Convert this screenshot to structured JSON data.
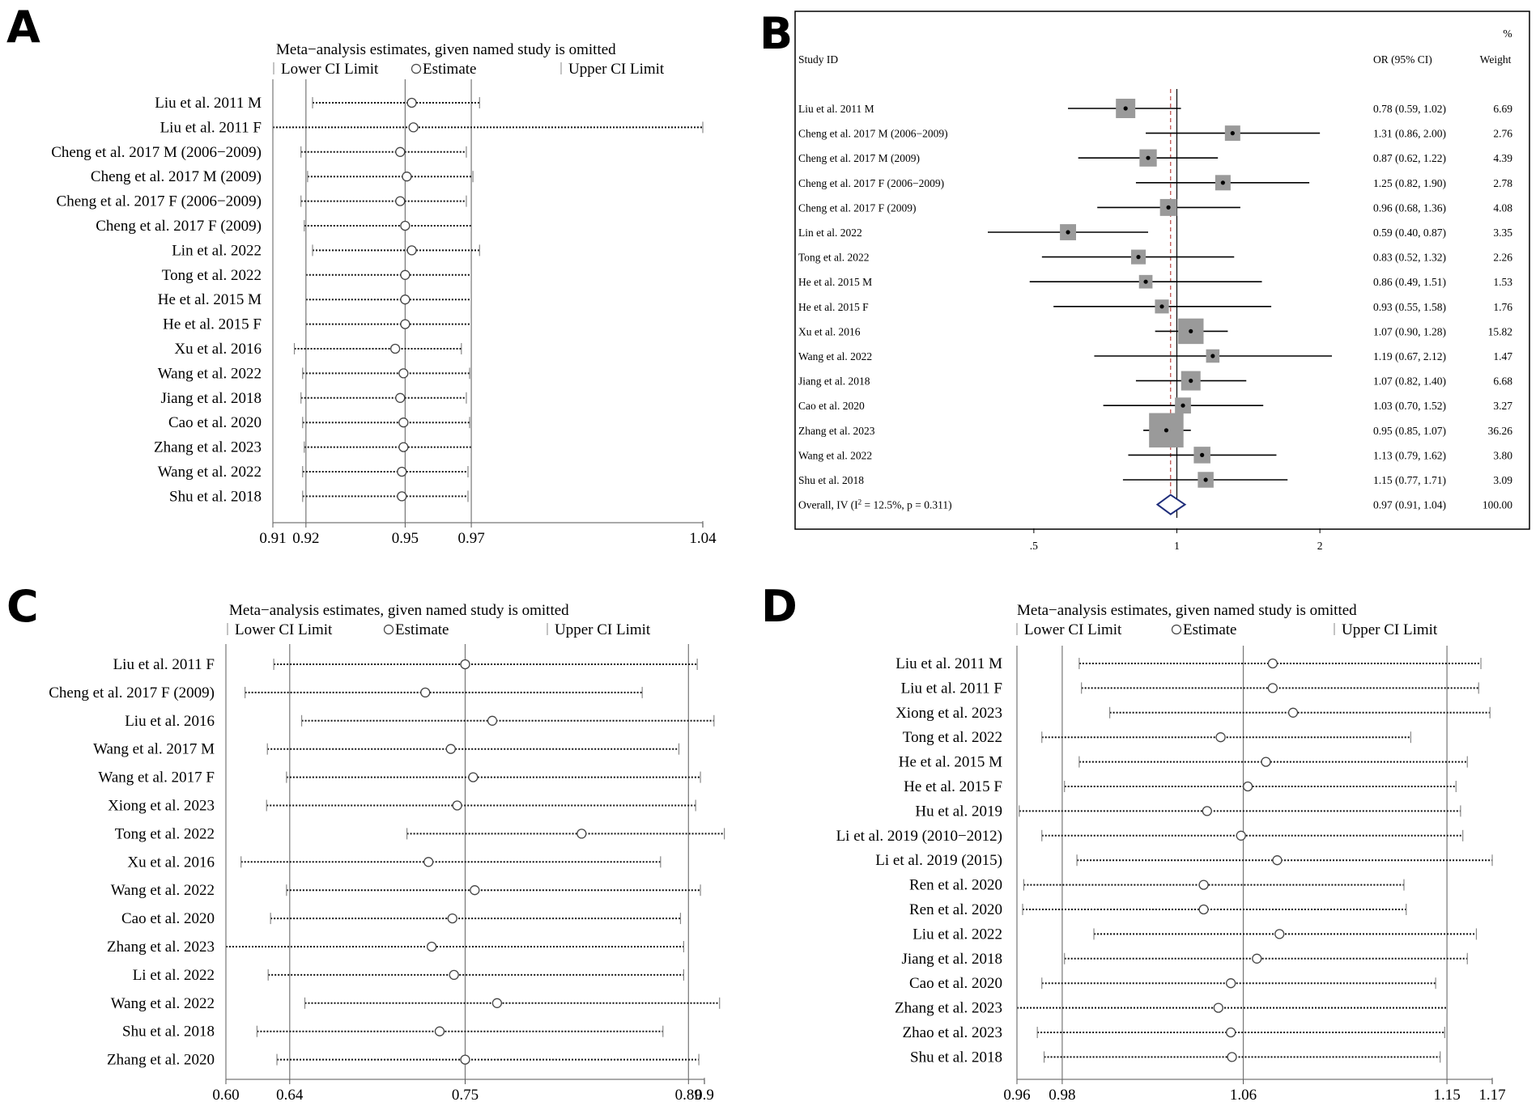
{
  "chart_data": [
    {
      "panel": "A",
      "type": "sensitivity",
      "title": "Meta−analysis estimates, given named study is omitted",
      "legend": [
        "Lower CI Limit",
        "Estimate",
        "Upper CI Limit"
      ],
      "axis": {
        "min": 0.91,
        "max": 1.04,
        "ticks": [
          0.91,
          0.92,
          0.95,
          0.97,
          1.04
        ],
        "tick_labels": [
          "0.91",
          "0.92",
          "0.95",
          "0.97",
          "1.04"
        ],
        "ref_lines": [
          0.92,
          0.95,
          0.97
        ]
      },
      "studies": [
        {
          "label": "Liu et al. 2011 M",
          "lower": 0.922,
          "est": 0.952,
          "upper": 0.9725
        },
        {
          "label": "Liu et al. 2011 F",
          "lower": 0.91,
          "est": 0.9525,
          "upper": 1.04
        },
        {
          "label": "Cheng et al. 2017 M (2006−2009)",
          "lower": 0.9185,
          "est": 0.9485,
          "upper": 0.9685
        },
        {
          "label": "Cheng et al. 2017 M (2009)",
          "lower": 0.9205,
          "est": 0.9505,
          "upper": 0.9705
        },
        {
          "label": "Cheng et al. 2017 F (2006−2009)",
          "lower": 0.9185,
          "est": 0.9485,
          "upper": 0.9685
        },
        {
          "label": "Cheng et al. 2017 F (2009)",
          "lower": 0.9195,
          "est": 0.95,
          "upper": 0.97
        },
        {
          "label": "Lin et al. 2022",
          "lower": 0.922,
          "est": 0.952,
          "upper": 0.9725
        },
        {
          "label": "Tong et al. 2022",
          "lower": 0.92,
          "est": 0.95,
          "upper": 0.97
        },
        {
          "label": "He et al. 2015 M",
          "lower": 0.92,
          "est": 0.95,
          "upper": 0.97
        },
        {
          "label": "He et al. 2015 F",
          "lower": 0.92,
          "est": 0.95,
          "upper": 0.97
        },
        {
          "label": "Xu et al. 2016",
          "lower": 0.9165,
          "est": 0.947,
          "upper": 0.967
        },
        {
          "label": "Wang et al. 2022",
          "lower": 0.919,
          "est": 0.9495,
          "upper": 0.9695
        },
        {
          "label": "Jiang et al. 2018",
          "lower": 0.9185,
          "est": 0.9485,
          "upper": 0.9685
        },
        {
          "label": "Cao et al. 2020",
          "lower": 0.919,
          "est": 0.9495,
          "upper": 0.9695
        },
        {
          "label": "Zhang et al. 2023",
          "lower": 0.9195,
          "est": 0.9495,
          "upper": 0.97
        },
        {
          "label": "Wang et al. 2022",
          "lower": 0.919,
          "est": 0.949,
          "upper": 0.969
        },
        {
          "label": "Shu et al. 2018",
          "lower": 0.919,
          "est": 0.949,
          "upper": 0.969
        }
      ]
    },
    {
      "panel": "B",
      "type": "forest",
      "header": {
        "study": "Study ID",
        "or": "OR (95% CI)",
        "weight_top": "%",
        "weight": "Weight"
      },
      "axis": {
        "scale": "log",
        "min": 0.4,
        "max": 2.12,
        "ticks": [
          0.5,
          1,
          2
        ],
        "tick_labels": [
          ".5",
          "1",
          "2"
        ],
        "ref_line": 1,
        "overall_line": 0.97
      },
      "studies": [
        {
          "label": "Liu et al. 2011 M",
          "or": 0.78,
          "lo": 0.59,
          "hi": 1.02,
          "ci_text": "0.78 (0.59, 1.02)",
          "weight_text": "6.69",
          "weight": 6.69
        },
        {
          "label": "Cheng et al. 2017 M (2006−2009)",
          "or": 1.31,
          "lo": 0.86,
          "hi": 2.0,
          "ci_text": "1.31 (0.86, 2.00)",
          "weight_text": "2.76",
          "weight": 2.76
        },
        {
          "label": "Cheng et al. 2017 M (2009)",
          "or": 0.87,
          "lo": 0.62,
          "hi": 1.22,
          "ci_text": "0.87 (0.62, 1.22)",
          "weight_text": "4.39",
          "weight": 4.39
        },
        {
          "label": "Cheng et al. 2017 F (2006−2009)",
          "or": 1.25,
          "lo": 0.82,
          "hi": 1.9,
          "ci_text": "1.25 (0.82, 1.90)",
          "weight_text": "2.78",
          "weight": 2.78
        },
        {
          "label": "Cheng et al. 2017 F (2009)",
          "or": 0.96,
          "lo": 0.68,
          "hi": 1.36,
          "ci_text": "0.96 (0.68, 1.36)",
          "weight_text": "4.08",
          "weight": 4.08
        },
        {
          "label": "Lin et al. 2022",
          "or": 0.59,
          "lo": 0.4,
          "hi": 0.87,
          "ci_text": "0.59 (0.40, 0.87)",
          "weight_text": "3.35",
          "weight": 3.35
        },
        {
          "label": "Tong et al. 2022",
          "or": 0.83,
          "lo": 0.52,
          "hi": 1.32,
          "ci_text": "0.83 (0.52, 1.32)",
          "weight_text": "2.26",
          "weight": 2.26
        },
        {
          "label": "He et al. 2015 M",
          "or": 0.86,
          "lo": 0.49,
          "hi": 1.51,
          "ci_text": "0.86 (0.49, 1.51)",
          "weight_text": "1.53",
          "weight": 1.53
        },
        {
          "label": "He et al. 2015 F",
          "or": 0.93,
          "lo": 0.55,
          "hi": 1.58,
          "ci_text": "0.93 (0.55, 1.58)",
          "weight_text": "1.76",
          "weight": 1.76
        },
        {
          "label": "Xu et al. 2016",
          "or": 1.07,
          "lo": 0.9,
          "hi": 1.28,
          "ci_text": "1.07 (0.90, 1.28)",
          "weight_text": "15.82",
          "weight": 15.82
        },
        {
          "label": "Wang et al. 2022",
          "or": 1.19,
          "lo": 0.67,
          "hi": 2.12,
          "ci_text": "1.19 (0.67, 2.12)",
          "weight_text": "1.47",
          "weight": 1.47
        },
        {
          "label": "Jiang et al. 2018",
          "or": 1.07,
          "lo": 0.82,
          "hi": 1.4,
          "ci_text": "1.07 (0.82, 1.40)",
          "weight_text": "6.68",
          "weight": 6.68
        },
        {
          "label": "Cao et al. 2020",
          "or": 1.03,
          "lo": 0.7,
          "hi": 1.52,
          "ci_text": "1.03 (0.70, 1.52)",
          "weight_text": "3.27",
          "weight": 3.27
        },
        {
          "label": "Zhang et al. 2023",
          "or": 0.95,
          "lo": 0.85,
          "hi": 1.07,
          "ci_text": "0.95 (0.85, 1.07)",
          "weight_text": "36.26",
          "weight": 36.26
        },
        {
          "label": "Wang et al. 2022",
          "or": 1.13,
          "lo": 0.79,
          "hi": 1.62,
          "ci_text": "1.13 (0.79, 1.62)",
          "weight_text": "3.80",
          "weight": 3.8
        },
        {
          "label": "Shu et al. 2018",
          "or": 1.15,
          "lo": 0.77,
          "hi": 1.71,
          "ci_text": "1.15 (0.77, 1.71)",
          "weight_text": "3.09",
          "weight": 3.09
        }
      ],
      "overall": {
        "label_prefix": "Overall, IV (I",
        "label_sup": "2",
        "label_suffix": " = 12.5%, p = 0.311)",
        "or": 0.97,
        "lo": 0.91,
        "hi": 1.04,
        "ci_text": "0.97 (0.91, 1.04)",
        "weight_text": "100.00"
      }
    },
    {
      "panel": "C",
      "type": "sensitivity",
      "title": "Meta−analysis estimates, given named study is omitted",
      "legend": [
        "Lower CI Limit",
        "Estimate",
        "Upper CI Limit"
      ],
      "axis": {
        "min": 0.6,
        "max": 0.9,
        "ticks": [
          0.6,
          0.64,
          0.75,
          0.89,
          0.9
        ],
        "tick_labels": [
          "0.60",
          "0.64",
          "0.75",
          "0.89",
          "0.9"
        ],
        "ref_lines": [
          0.64,
          0.75,
          0.89
        ]
      },
      "studies": [
        {
          "label": "Liu et al. 2011 F",
          "lower": 0.63,
          "est": 0.75,
          "upper": 0.8955
        },
        {
          "label": "Cheng et al. 2017 F (2009)",
          "lower": 0.612,
          "est": 0.725,
          "upper": 0.861
        },
        {
          "label": "Liu et al. 2016",
          "lower": 0.6475,
          "est": 0.767,
          "upper": 0.906
        },
        {
          "label": "Wang et al. 2017 M",
          "lower": 0.626,
          "est": 0.741,
          "upper": 0.884
        },
        {
          "label": "Wang et al. 2017 F",
          "lower": 0.638,
          "est": 0.755,
          "upper": 0.8975
        },
        {
          "label": "Xiong et al. 2023",
          "lower": 0.6255,
          "est": 0.745,
          "upper": 0.8945
        },
        {
          "label": "Tong et al. 2022",
          "lower": 0.7135,
          "est": 0.823,
          "upper": 0.9125
        },
        {
          "label": "Xu et al. 2016",
          "lower": 0.6095,
          "est": 0.727,
          "upper": 0.8725
        },
        {
          "label": "Wang et al. 2022",
          "lower": 0.638,
          "est": 0.756,
          "upper": 0.8975
        },
        {
          "label": "Cao et al. 2020",
          "lower": 0.628,
          "est": 0.742,
          "upper": 0.885
        },
        {
          "label": "Zhang et al. 2023",
          "lower": 0.6,
          "est": 0.729,
          "upper": 0.887
        },
        {
          "label": "Li et al. 2022",
          "lower": 0.6265,
          "est": 0.743,
          "upper": 0.887
        },
        {
          "label": "Wang et al. 2022",
          "lower": 0.6495,
          "est": 0.77,
          "upper": 0.9095
        },
        {
          "label": "Shu et al. 2018",
          "lower": 0.6195,
          "est": 0.734,
          "upper": 0.874
        },
        {
          "label": "Zhang et al. 2020",
          "lower": 0.632,
          "est": 0.75,
          "upper": 0.8965
        }
      ]
    },
    {
      "panel": "D",
      "type": "sensitivity",
      "title": "Meta−analysis estimates, given named study is omitted",
      "legend": [
        "Lower CI Limit",
        "Estimate",
        "Upper CI Limit"
      ],
      "axis": {
        "min": 0.96,
        "max": 1.17,
        "ticks": [
          0.96,
          0.98,
          1.06,
          1.15,
          1.17
        ],
        "tick_labels": [
          "0.96",
          "0.98",
          "1.06",
          "1.15",
          "1.17"
        ],
        "ref_lines": [
          0.98,
          1.06,
          1.15
        ]
      },
      "studies": [
        {
          "label": "Liu et al. 2011 M",
          "lower": 0.9875,
          "est": 1.073,
          "upper": 1.165
        },
        {
          "label": "Liu et al. 2011 F",
          "lower": 0.9885,
          "est": 1.073,
          "upper": 1.164
        },
        {
          "label": "Xiong et al. 2023",
          "lower": 1.001,
          "est": 1.082,
          "upper": 1.169
        },
        {
          "label": "Tong et al. 2022",
          "lower": 0.971,
          "est": 1.05,
          "upper": 1.134
        },
        {
          "label": "He et al. 2015 M",
          "lower": 0.9875,
          "est": 1.07,
          "upper": 1.159
        },
        {
          "label": "He et al. 2015 F",
          "lower": 0.981,
          "est": 1.062,
          "upper": 1.154
        },
        {
          "label": "Hu et al. 2019",
          "lower": 0.961,
          "est": 1.044,
          "upper": 1.156
        },
        {
          "label": "Li et al. 2019 (2010−2012)",
          "lower": 0.971,
          "est": 1.059,
          "upper": 1.157
        },
        {
          "label": "Li et al. 2019 (2015)",
          "lower": 0.9865,
          "est": 1.075,
          "upper": 1.17
        },
        {
          "label": "Ren et al. 2020",
          "lower": 0.963,
          "est": 1.0425,
          "upper": 1.131
        },
        {
          "label": "Ren et al. 2020",
          "lower": 0.9625,
          "est": 1.0425,
          "upper": 1.132
        },
        {
          "label": "Liu et al. 2022",
          "lower": 0.994,
          "est": 1.076,
          "upper": 1.163
        },
        {
          "label": "Jiang et al. 2018",
          "lower": 0.981,
          "est": 1.066,
          "upper": 1.159
        },
        {
          "label": "Cao et al. 2020",
          "lower": 0.971,
          "est": 1.0545,
          "upper": 1.145
        },
        {
          "label": "Zhang et al. 2023",
          "lower": 0.96,
          "est": 1.049,
          "upper": 1.15
        },
        {
          "label": "Zhao et al. 2023",
          "lower": 0.969,
          "est": 1.0545,
          "upper": 1.149
        },
        {
          "label": "Shu et al. 2018",
          "lower": 0.972,
          "est": 1.055,
          "upper": 1.147
        }
      ]
    }
  ],
  "panel_letters": [
    "A",
    "B",
    "C",
    "D"
  ]
}
